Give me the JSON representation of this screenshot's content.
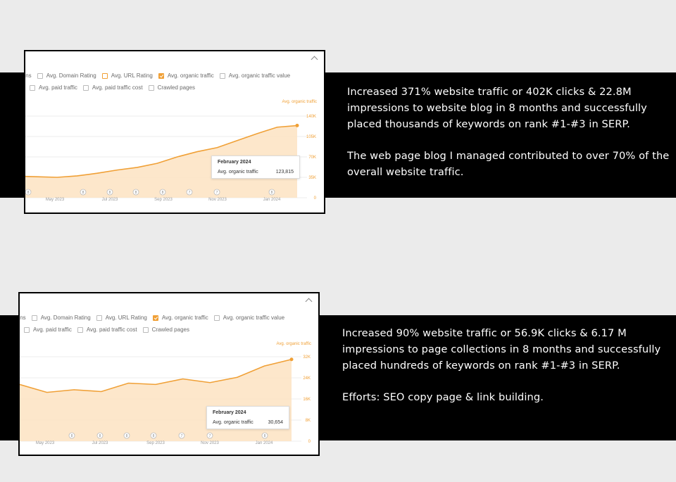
{
  "colors": {
    "accent": "#f0a036",
    "fill": "#fde3c2",
    "band": "#000000",
    "background": "#ebebeb"
  },
  "options": {
    "row1": [
      {
        "label": "ains",
        "state": "none"
      },
      {
        "label": "Avg. Domain Rating",
        "state": "unchecked"
      },
      {
        "label": "Avg. URL Rating",
        "state": "highlight"
      },
      {
        "label": "Avg. organic traffic",
        "state": "checked"
      },
      {
        "label": "Avg. organic traffic value",
        "state": "unchecked"
      }
    ],
    "row2": [
      {
        "label": "Avg. paid traffic",
        "state": "unchecked"
      },
      {
        "label": "Avg. paid traffic cost",
        "state": "unchecked"
      },
      {
        "label": "Crawled pages",
        "state": "unchecked"
      }
    ]
  },
  "panels": [
    {
      "legend": "Avg. organic traffic",
      "y_ticks": [
        "140K",
        "105K",
        "70K",
        "35K",
        "0"
      ],
      "y_max": 140000,
      "x_labels": [
        "May 2023",
        "Jul 2023",
        "Sep 2023",
        "Nov 2023",
        "Jan 2024"
      ],
      "markers": [
        "8",
        "8",
        "8",
        "8",
        "8",
        "7",
        "7",
        "8"
      ],
      "tooltip": {
        "title": "February 2024",
        "label": "Avg. organic traffic",
        "value": "123,815"
      },
      "series": [
        38000,
        37000,
        36000,
        35000,
        37500,
        42000,
        47500,
        52000,
        59000,
        70000,
        79000,
        86000,
        98000,
        110000,
        121000,
        123815
      ]
    },
    {
      "legend": "Avg. organic traffic",
      "y_ticks": [
        "32K",
        "24K",
        "16K",
        "8K",
        "0"
      ],
      "y_max": 32000,
      "x_labels": [
        "May 2023",
        "Jul 2023",
        "Sep 2023",
        "Nov 2023",
        "Jan 2024"
      ],
      "markers": [
        "8",
        "8",
        "8",
        "8",
        "7",
        "7",
        "8"
      ],
      "tooltip": {
        "title": "February 2024",
        "label": "Avg. organic traffic",
        "value": "30,654"
      },
      "series": [
        21500,
        18500,
        19500,
        18800,
        22000,
        21500,
        23600,
        22200,
        24200,
        28500,
        31000
      ]
    }
  ],
  "copy": [
    {
      "p1": "Increased 371% website traffic or 402K clicks & 22.8M impressions to website blog in 8 months and successfully placed thousands of keywords on rank #1-#3 in SERP.",
      "p2": "The web page blog I managed contributed to over 70% of the overall website traffic."
    },
    {
      "p1": "Increased 90% website traffic or 56.9K clicks & 6.17 M impressions to page collections in 8 months and successfully placed hundreds of keywords on rank #1-#3 in SERP.",
      "p2": "Efforts: SEO copy page & link building."
    }
  ]
}
